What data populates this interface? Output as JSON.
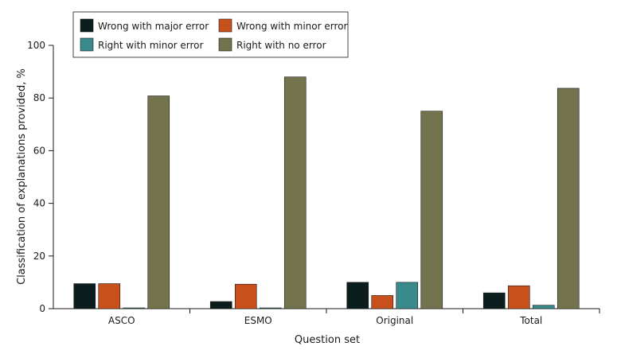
{
  "chart_data": {
    "type": "bar",
    "categories": [
      "ASCO",
      "ESMO",
      "Original",
      "Total"
    ],
    "series": [
      {
        "name": "Wrong with major error",
        "color": "#0b1d1c",
        "values": [
          9.5,
          2.7,
          10.0,
          6.0
        ]
      },
      {
        "name": "Wrong with minor error",
        "color": "#c8501a",
        "values": [
          9.5,
          9.3,
          5.0,
          8.7
        ]
      },
      {
        "name": "Right with minor error",
        "color": "#3a8a8c",
        "values": [
          0.3,
          0.3,
          10.0,
          1.3
        ]
      },
      {
        "name": "Right with no error",
        "color": "#73734d",
        "values": [
          80.8,
          88.0,
          75.0,
          83.7
        ]
      }
    ],
    "xlabel": "Question set",
    "ylabel": "Classification of explanations provided, %",
    "ylim": [
      0,
      100
    ],
    "yticks": [
      0,
      20,
      40,
      60,
      80,
      100
    ],
    "grid": false,
    "legend_placement": "top-left"
  }
}
